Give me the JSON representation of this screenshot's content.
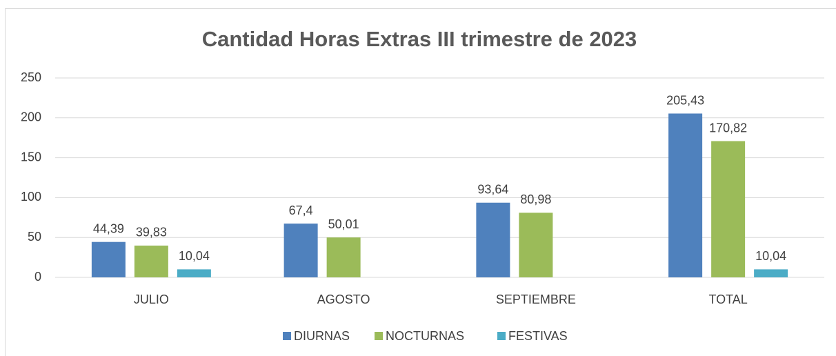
{
  "chart_data": {
    "type": "bar",
    "title": "Cantidad Horas Extras III trimestre de 2023",
    "categories": [
      "JULIO",
      "AGOSTO",
      "SEPTIEMBRE",
      "TOTAL"
    ],
    "series": [
      {
        "name": "DIURNAS",
        "color": "#4f81bd",
        "values": [
          44.39,
          67.4,
          93.64,
          205.43
        ],
        "value_labels": [
          "44,39",
          "67,4",
          "93,64",
          "205,43"
        ]
      },
      {
        "name": "NOCTURNAS",
        "color": "#9bbb59",
        "values": [
          39.83,
          50.01,
          80.98,
          170.82
        ],
        "value_labels": [
          "39,83",
          "50,01",
          "80,98",
          "170,82"
        ]
      },
      {
        "name": "FESTIVAS",
        "color": "#4bacc6",
        "values": [
          10.04,
          null,
          null,
          10.04
        ],
        "value_labels": [
          "10,04",
          null,
          null,
          "10,04"
        ]
      }
    ],
    "ylim": [
      0,
      250
    ],
    "yticks": [
      0,
      50,
      100,
      150,
      200,
      250
    ],
    "grid": true,
    "legend": "bottom"
  }
}
